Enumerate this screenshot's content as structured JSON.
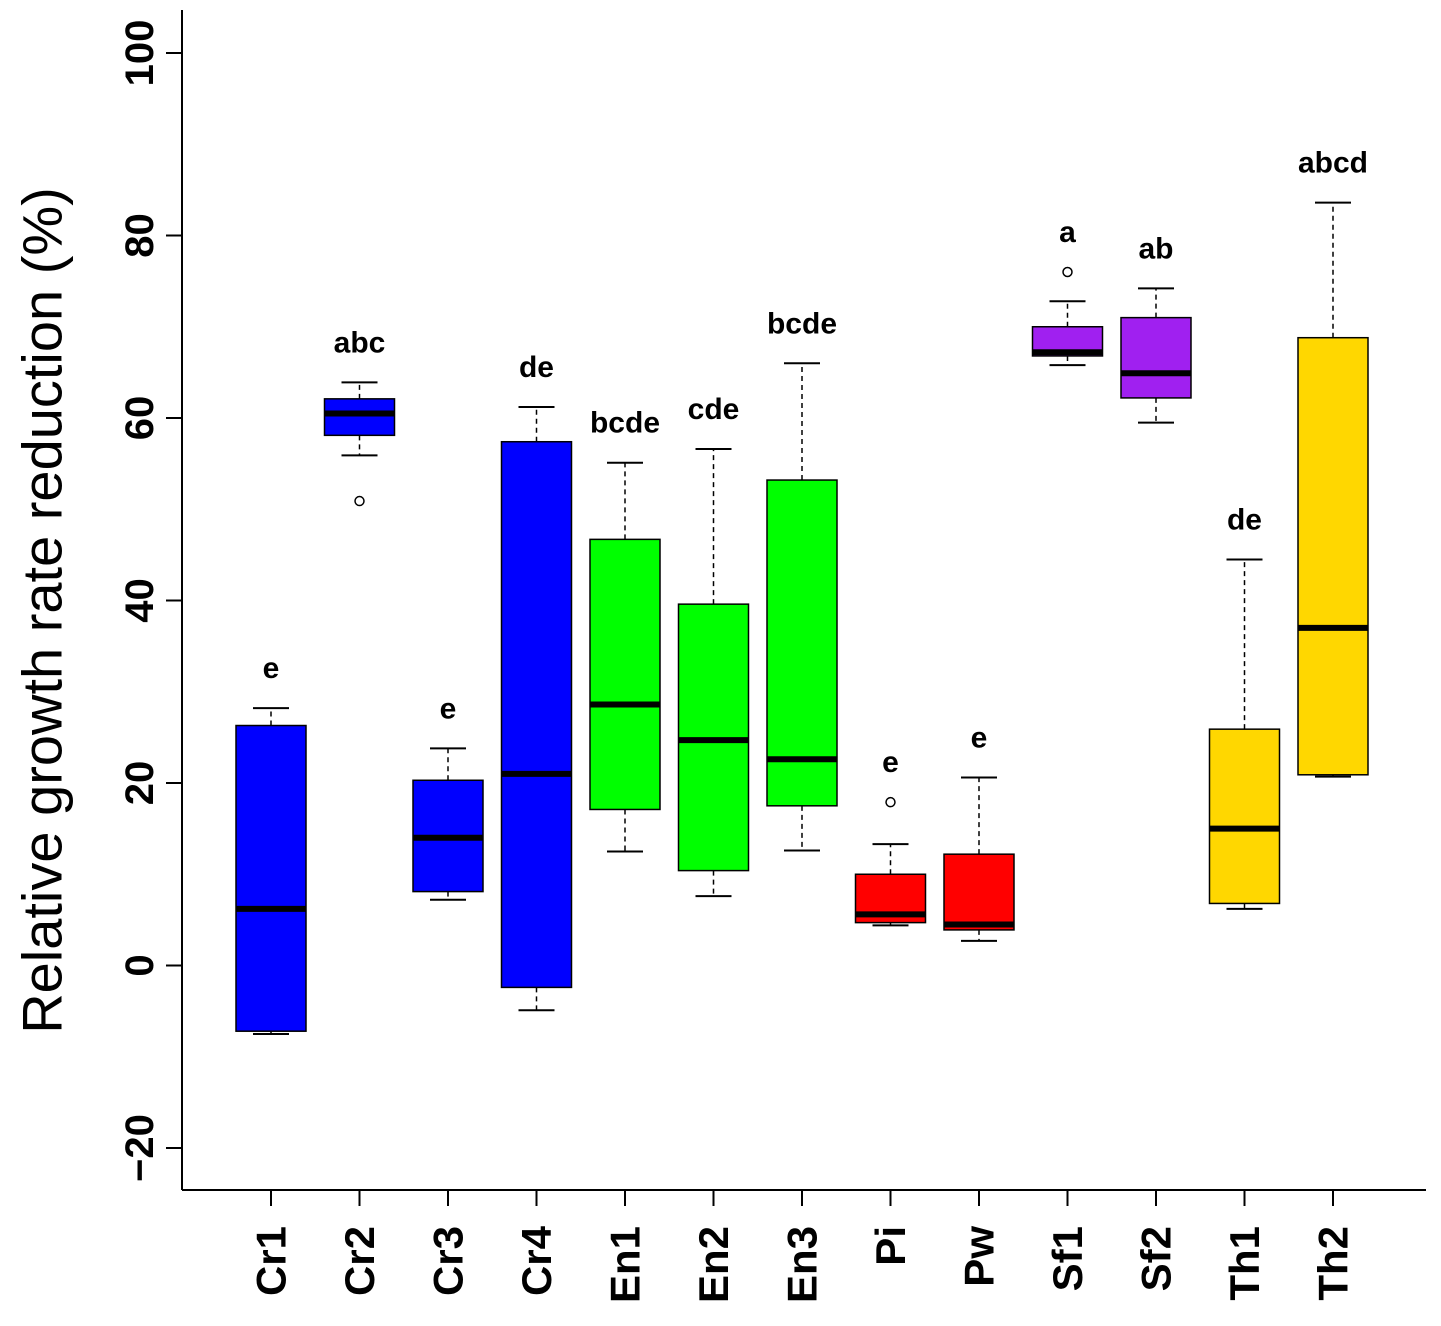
{
  "chart_data": {
    "type": "boxplot",
    "title": "",
    "xlabel": "",
    "ylabel": "Relative growth rate reduction (%)",
    "ylim": [
      -20,
      100
    ],
    "yticks": [
      -20,
      0,
      20,
      40,
      60,
      80,
      100
    ],
    "grid": false,
    "legend": "none",
    "categories": [
      "Cr1",
      "Cr2",
      "Cr3",
      "Cr4",
      "En1",
      "En2",
      "En3",
      "Pi",
      "Pw",
      "Sf1",
      "Sf2",
      "Th1",
      "Th2"
    ],
    "boxes": [
      {
        "name": "Cr1",
        "color": "#0000FF",
        "whisker_low": -7.5,
        "q1": -7.2,
        "median": 6.2,
        "q3": 26.3,
        "whisker_high": 28.2,
        "outliers": [],
        "letters": "e"
      },
      {
        "name": "Cr2",
        "color": "#0000FF",
        "whisker_low": 55.9,
        "q1": 58.1,
        "median": 60.5,
        "q3": 62.1,
        "whisker_high": 63.9,
        "outliers": [
          50.9
        ],
        "letters": "abc"
      },
      {
        "name": "Cr3",
        "color": "#0000FF",
        "whisker_low": 7.2,
        "q1": 8.1,
        "median": 14.0,
        "q3": 20.3,
        "whisker_high": 23.8,
        "outliers": [],
        "letters": "e"
      },
      {
        "name": "Cr4",
        "color": "#0000FF",
        "whisker_low": -4.9,
        "q1": -2.4,
        "median": 21.0,
        "q3": 57.4,
        "whisker_high": 61.2,
        "outliers": [],
        "letters": "de"
      },
      {
        "name": "En1",
        "color": "#00FF00",
        "whisker_low": 12.5,
        "q1": 17.1,
        "median": 28.6,
        "q3": 46.7,
        "whisker_high": 55.1,
        "outliers": [],
        "letters": "bcde"
      },
      {
        "name": "En2",
        "color": "#00FF00",
        "whisker_low": 7.6,
        "q1": 10.4,
        "median": 24.7,
        "q3": 39.6,
        "whisker_high": 56.6,
        "outliers": [],
        "letters": "cde"
      },
      {
        "name": "En3",
        "color": "#00FF00",
        "whisker_low": 12.6,
        "q1": 17.5,
        "median": 22.6,
        "q3": 53.2,
        "whisker_high": 66.0,
        "outliers": [],
        "letters": "bcde"
      },
      {
        "name": "Pi",
        "color": "#FF0000",
        "whisker_low": 4.4,
        "q1": 4.7,
        "median": 5.6,
        "q3": 10.0,
        "whisker_high": 13.3,
        "outliers": [
          17.9
        ],
        "letters": "e"
      },
      {
        "name": "Pw",
        "color": "#FF0000",
        "whisker_low": 2.7,
        "q1": 3.9,
        "median": 4.5,
        "q3": 12.2,
        "whisker_high": 20.6,
        "outliers": [],
        "letters": "e"
      },
      {
        "name": "Sf1",
        "color": "#A020F0",
        "whisker_low": 65.8,
        "q1": 66.8,
        "median": 67.2,
        "q3": 70.0,
        "whisker_high": 72.8,
        "outliers": [
          76.0
        ],
        "letters": "a"
      },
      {
        "name": "Sf2",
        "color": "#A020F0",
        "whisker_low": 59.5,
        "q1": 62.2,
        "median": 64.9,
        "q3": 71.0,
        "whisker_high": 74.2,
        "outliers": [],
        "letters": "ab"
      },
      {
        "name": "Th1",
        "color": "#FFD700",
        "whisker_low": 6.2,
        "q1": 6.8,
        "median": 15.0,
        "q3": 25.9,
        "whisker_high": 44.5,
        "outliers": [],
        "letters": "de"
      },
      {
        "name": "Th2",
        "color": "#FFD700",
        "whisker_low": 20.7,
        "q1": 20.9,
        "median": 37.0,
        "q3": 68.8,
        "whisker_high": 83.6,
        "outliers": [],
        "letters": "abcd"
      }
    ]
  }
}
